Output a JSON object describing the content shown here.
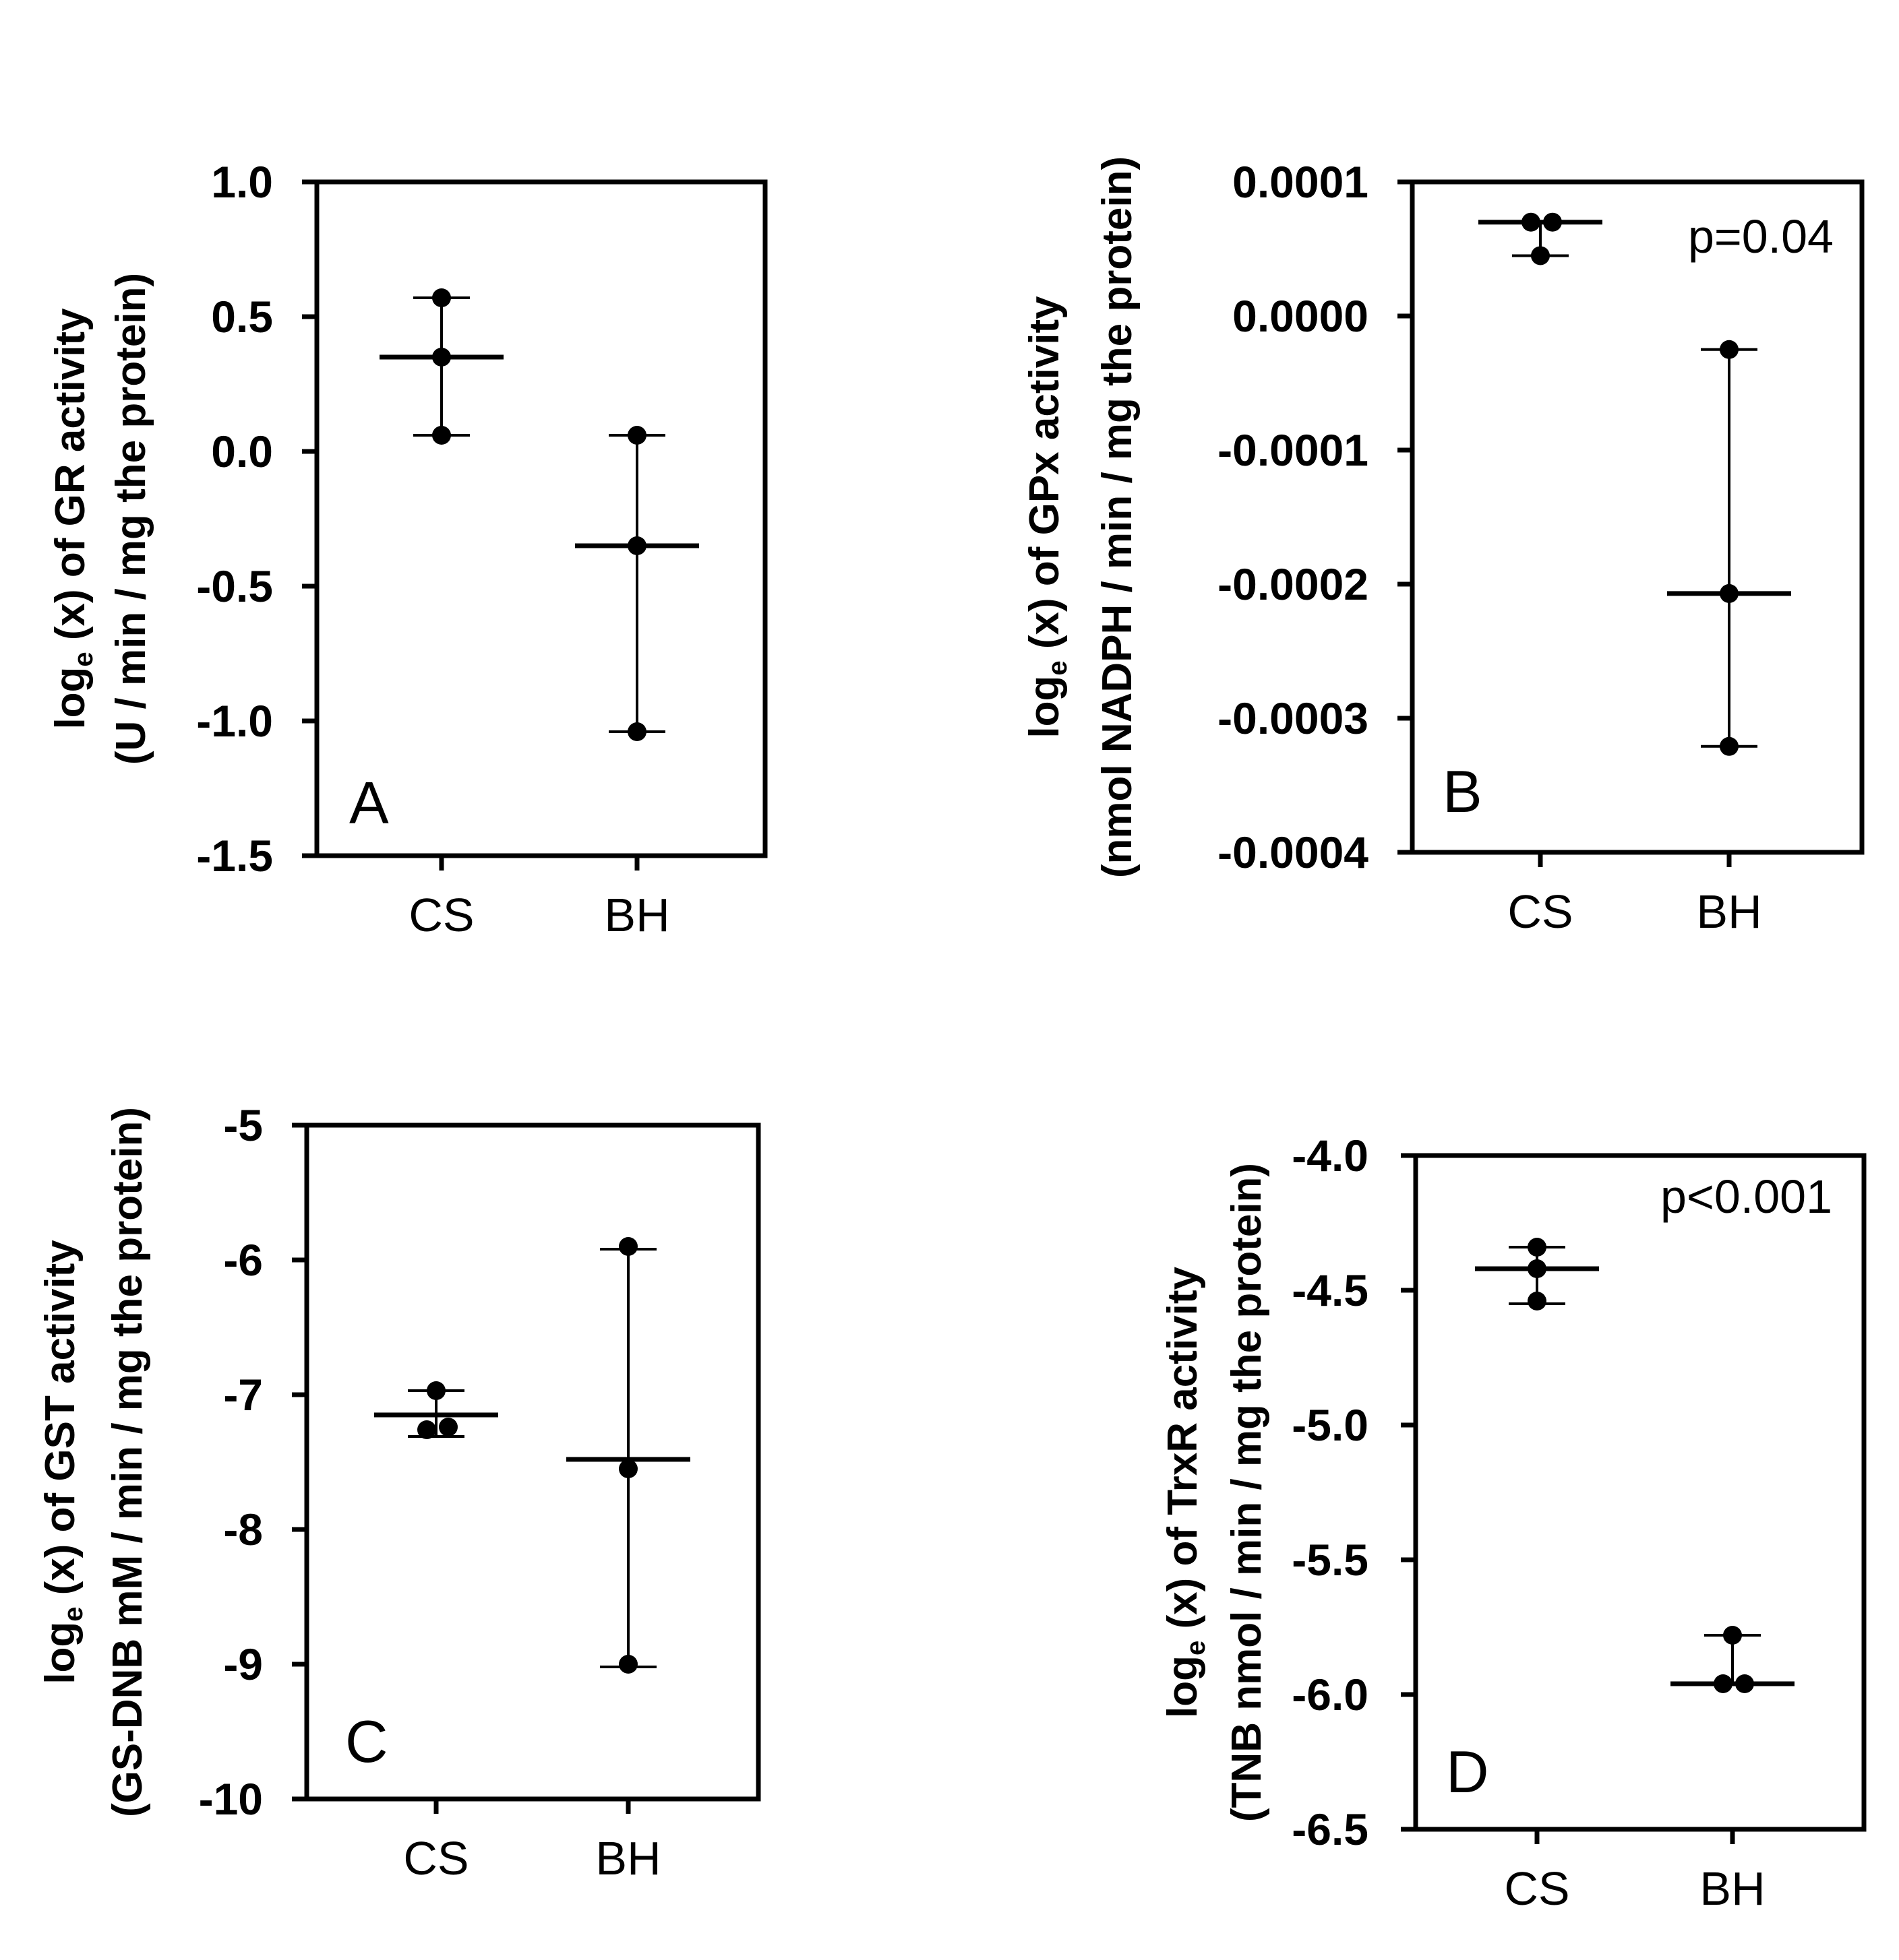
{
  "chart_data": [
    {
      "panel": "A",
      "type": "scatter",
      "categories": [
        "CS",
        "BH"
      ],
      "ylabel_line1_prefix": "log",
      "ylabel_line1_sub": "e",
      "ylabel_line1_suffix": " (x) of GR activity",
      "ylabel_line2": "(U / min / mg the protein)",
      "ylim": [
        -1.5,
        1.0
      ],
      "yticks": [
        1.0,
        0.5,
        0.0,
        -0.5,
        -1.0,
        -1.5
      ],
      "ytick_labels": [
        "1.0",
        "0.5",
        "0.0",
        "-0.5",
        "-1.0",
        "-1.5"
      ],
      "pvalue": "",
      "series": [
        {
          "name": "CS",
          "points": [
            0.57,
            0.35,
            0.06
          ],
          "mean": 0.35,
          "err_low": 0.06,
          "err_high": 0.57
        },
        {
          "name": "BH",
          "points": [
            0.06,
            -0.35,
            -1.04
          ],
          "mean": -0.35,
          "err_low": -1.04,
          "err_high": 0.06
        }
      ]
    },
    {
      "panel": "B",
      "type": "scatter",
      "categories": [
        "CS",
        "BH"
      ],
      "ylabel_line1_prefix": "log",
      "ylabel_line1_sub": "e",
      "ylabel_line1_suffix": " (x) of GPx activity",
      "ylabel_line2": "(nmol NADPH / min / mg the protein)",
      "ylim": [
        -0.0004,
        0.0001
      ],
      "yticks": [
        0.0001,
        0.0,
        -0.0001,
        -0.0002,
        -0.0003,
        -0.0004
      ],
      "ytick_labels": [
        "0.0001",
        "0.0000",
        "-0.0001",
        "-0.0002",
        "-0.0003",
        "-0.0004"
      ],
      "pvalue": "p=0.04",
      "series": [
        {
          "name": "CS",
          "points": [
            7e-05,
            7e-05,
            4.5e-05
          ],
          "mean": 7e-05,
          "err_low": 4.5e-05,
          "err_high": 7e-05
        },
        {
          "name": "BH",
          "points": [
            -2.5e-05,
            -0.000207,
            -0.000321
          ],
          "mean": -0.000207,
          "err_low": -0.000321,
          "err_high": -2.5e-05
        }
      ]
    },
    {
      "panel": "C",
      "type": "scatter",
      "categories": [
        "CS",
        "BH"
      ],
      "ylabel_line1_prefix": "log",
      "ylabel_line1_sub": "e",
      "ylabel_line1_suffix": " (x) of GST activity",
      "ylabel_line2": "(GS-DNB mM / min / mg the protein)",
      "ylim": [
        -10,
        -5
      ],
      "yticks": [
        -5,
        -6,
        -7,
        -8,
        -9,
        -10
      ],
      "ytick_labels": [
        "-5",
        "-6",
        "-7",
        "-8",
        "-9",
        "-10"
      ],
      "pvalue": "",
      "series": [
        {
          "name": "CS",
          "points": [
            -6.97,
            -7.24,
            -7.26
          ],
          "mean": -7.15,
          "err_low": -7.31,
          "err_high": -6.97
        },
        {
          "name": "BH",
          "points": [
            -5.9,
            -7.55,
            -9.0
          ],
          "mean": -7.48,
          "err_low": -9.02,
          "err_high": -5.92
        }
      ]
    },
    {
      "panel": "D",
      "type": "scatter",
      "categories": [
        "CS",
        "BH"
      ],
      "ylabel_line1_prefix": "log",
      "ylabel_line1_sub": "e",
      "ylabel_line1_suffix": " (x) of TrxR activity",
      "ylabel_line2": "(TNB nmol / min / mg the protein)",
      "ylim": [
        -6.5,
        -4.0
      ],
      "yticks": [
        -4.0,
        -4.5,
        -5.0,
        -5.5,
        -6.0,
        -6.5
      ],
      "ytick_labels": [
        "-4.0",
        "-4.5",
        "-5.0",
        "-5.5",
        "-6.0",
        "-6.5"
      ],
      "pvalue": "p<0.001",
      "series": [
        {
          "name": "CS",
          "points": [
            -4.34,
            -4.42,
            -4.54
          ],
          "mean": -4.42,
          "err_low": -4.55,
          "err_high": -4.34
        },
        {
          "name": "BH",
          "points": [
            -5.78,
            -5.96,
            -5.96
          ],
          "mean": -5.96,
          "err_low": -5.96,
          "err_high": -5.78
        }
      ]
    }
  ]
}
